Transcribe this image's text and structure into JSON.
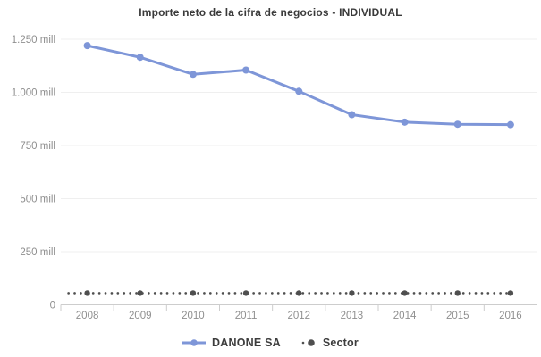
{
  "chart_data": {
    "type": "line",
    "title": "Importe neto de la cifra de negocios - INDIVIDUAL",
    "value_unit": "mill",
    "categories": [
      "2008",
      "2009",
      "2010",
      "2011",
      "2012",
      "2013",
      "2014",
      "2015",
      "2016"
    ],
    "series": [
      {
        "name": "DANONE SA",
        "color": "#7e96d8",
        "line_style": "solid",
        "marker": "circle",
        "values": [
          1220,
          1165,
          1085,
          1105,
          1005,
          895,
          860,
          850,
          848
        ]
      },
      {
        "name": "Sector",
        "color": "#4f4f4f",
        "line_style": "dotted",
        "marker": "circle",
        "values": [
          55,
          55,
          55,
          55,
          55,
          55,
          55,
          55,
          55
        ]
      }
    ],
    "ylim": [
      0,
      1250
    ],
    "yticks": [
      {
        "value": 0,
        "label": "0"
      },
      {
        "value": 250,
        "label": "250 mill"
      },
      {
        "value": 500,
        "label": "500 mill"
      },
      {
        "value": 750,
        "label": "750 mill"
      },
      {
        "value": 1000,
        "label": "1.000 mill"
      },
      {
        "value": 1250,
        "label": "1.250 mill"
      }
    ],
    "grid": "horizontal",
    "legend_position": "bottom",
    "colors": {
      "background": "#ffffff",
      "gridline": "#efefef",
      "axis_line": "#cdcdcd",
      "tick": "#cdcdcd",
      "axis_text": "#8f8f8f",
      "title_text": "#3a3a3a",
      "legend_text": "#3d3d3d"
    }
  }
}
